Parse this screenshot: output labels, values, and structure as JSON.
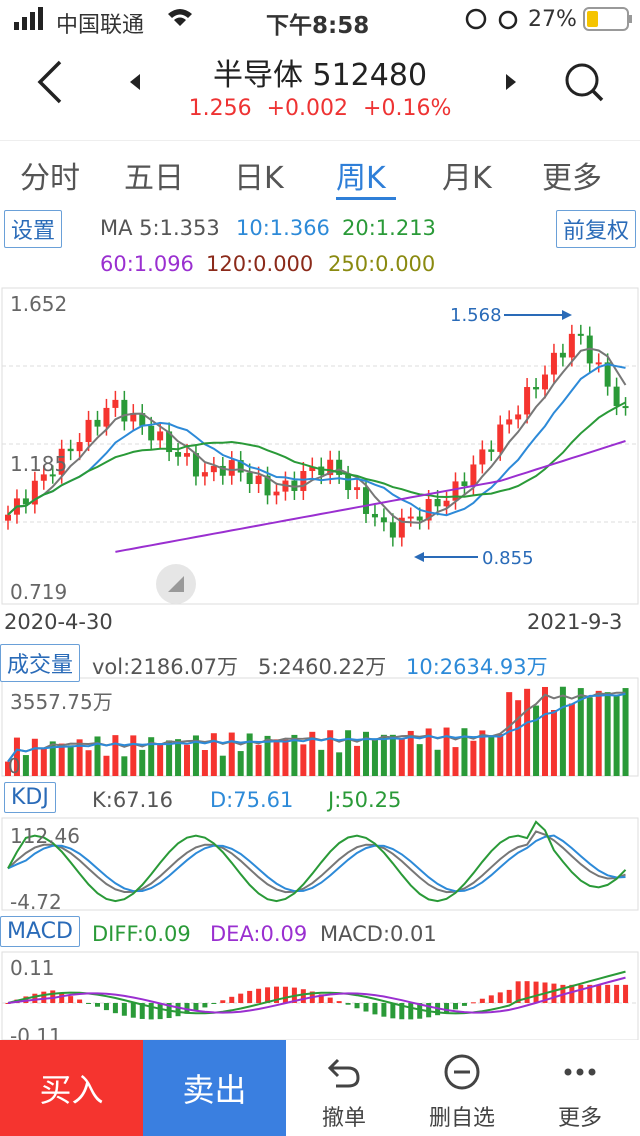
{
  "status": {
    "carrier": "中国联通",
    "time": "下午8:58",
    "battery": "27%"
  },
  "header": {
    "title": "半导体 512480",
    "price": "1.256",
    "change": "+0.002",
    "change_pct": "+0.16%"
  },
  "tabs": [
    "分时",
    "五日",
    "日K",
    "周K",
    "月K",
    "更多"
  ],
  "settings_label": "设置",
  "adjust_label": "前复权",
  "ma": {
    "ma5": "MA 5:1.353",
    "ma10": "10:1.366",
    "ma20": "20:1.213",
    "ma60": "60:1.096",
    "ma120": "120:0.000",
    "ma250": "250:0.000"
  },
  "price_axis": {
    "top": "1.652",
    "mid": "1.185",
    "bottom": "0.719"
  },
  "annotations": {
    "high": "1.568",
    "low": "0.855"
  },
  "dates": {
    "start": "2020-4-30",
    "end": "2021-9-3"
  },
  "volume": {
    "label": "成交量",
    "vol": "vol:2186.07万",
    "v5": "5:2460.22万",
    "v10": "10:2634.93万",
    "axis_top": "3557.75万",
    "axis_bottom": "0"
  },
  "kdj": {
    "label": "KDJ",
    "k": "K:67.16",
    "d": "D:75.61",
    "j": "J:50.25",
    "axis_top": "112.46",
    "axis_bottom": "-4.72"
  },
  "macd": {
    "label": "MACD",
    "diff": "DIFF:0.09",
    "dea": "DEA:0.09",
    "macd": "MACD:0.01",
    "axis_top": "0.11",
    "axis_bottom": "-0.11"
  },
  "bottom": {
    "buy": "买入",
    "sell": "卖出",
    "cancel": "撤单",
    "remove": "删自选",
    "more": "更多"
  },
  "colors": {
    "up": "#f5342f",
    "down": "#2a9a38",
    "accent": "#2f7fd8"
  }
}
